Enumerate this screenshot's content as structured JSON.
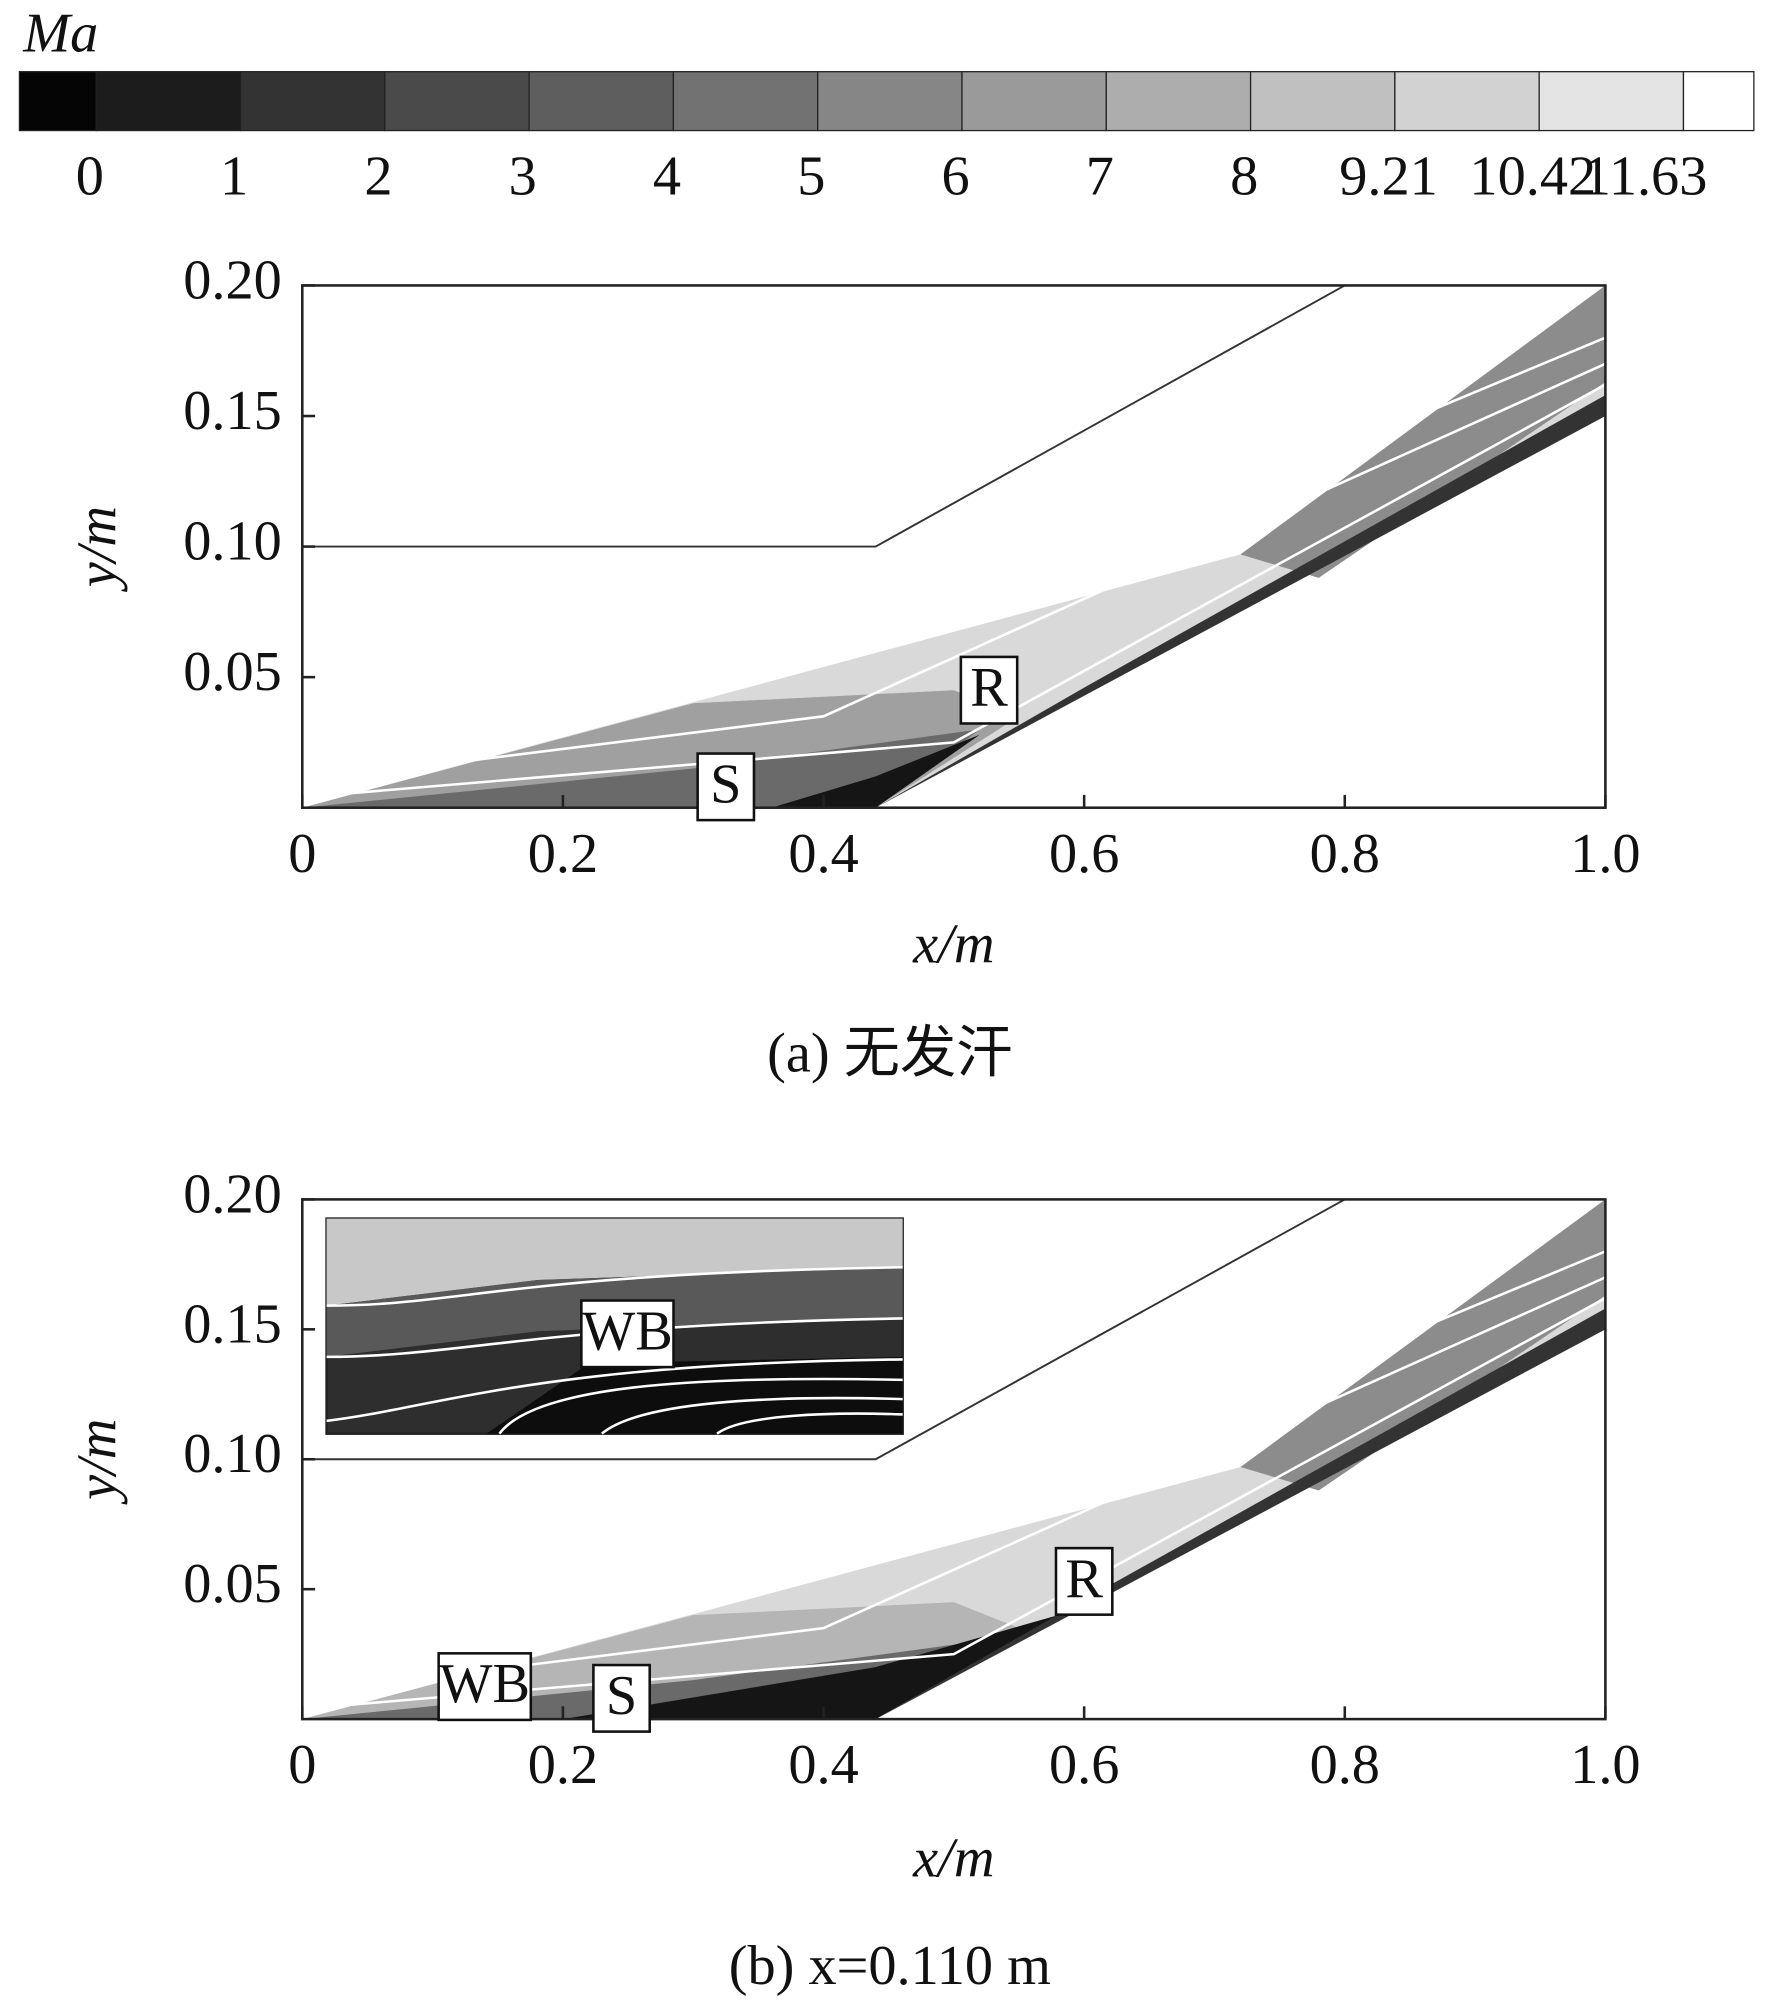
{
  "colorbar": {
    "title": "Ma",
    "ticks": [
      0,
      1,
      2,
      3,
      4,
      5,
      6,
      7,
      8,
      9.21,
      10.42,
      11.63
    ],
    "colors": [
      "#050505",
      "#1c1c1c",
      "#333333",
      "#4a4a4a",
      "#5e5e5e",
      "#727272",
      "#868686",
      "#9a9a9a",
      "#adadad",
      "#c0c0c0",
      "#d2d2d2",
      "#e4e4e4",
      "#ffffff"
    ]
  },
  "chart_data": [
    {
      "type": "contour",
      "caption": "(a) 无发汗",
      "xlabel": "x/m",
      "ylabel": "y/m",
      "xlim": [
        0,
        1
      ],
      "ylim": [
        0,
        0.2
      ],
      "xticks": [
        0,
        0.2,
        0.4,
        0.6,
        0.8,
        {
          "value": 1,
          "label": "1.0"
        }
      ],
      "yticks": [
        {
          "value": 0.05,
          "label": "0.05"
        },
        {
          "value": 0.1,
          "label": "0.10"
        },
        {
          "value": 0.15,
          "label": "0.15"
        },
        {
          "value": 0.2,
          "label": "0.20"
        }
      ],
      "annotations": [
        "S",
        "R"
      ]
    },
    {
      "type": "contour",
      "caption": "(b) x=0.110 m",
      "xlabel": "x/m",
      "ylabel": "y/m",
      "xlim": [
        0,
        1
      ],
      "ylim": [
        0,
        0.2
      ],
      "xticks": [
        0,
        0.2,
        0.4,
        0.6,
        0.8,
        {
          "value": 1,
          "label": "1.0"
        }
      ],
      "yticks": [
        {
          "value": 0.05,
          "label": "0.05"
        },
        {
          "value": 0.1,
          "label": "0.10"
        },
        {
          "value": 0.15,
          "label": "0.15"
        },
        {
          "value": 0.2,
          "label": "0.20"
        }
      ],
      "annotations": [
        "WB",
        "S",
        "R"
      ],
      "inset_annotation": "WB"
    }
  ]
}
